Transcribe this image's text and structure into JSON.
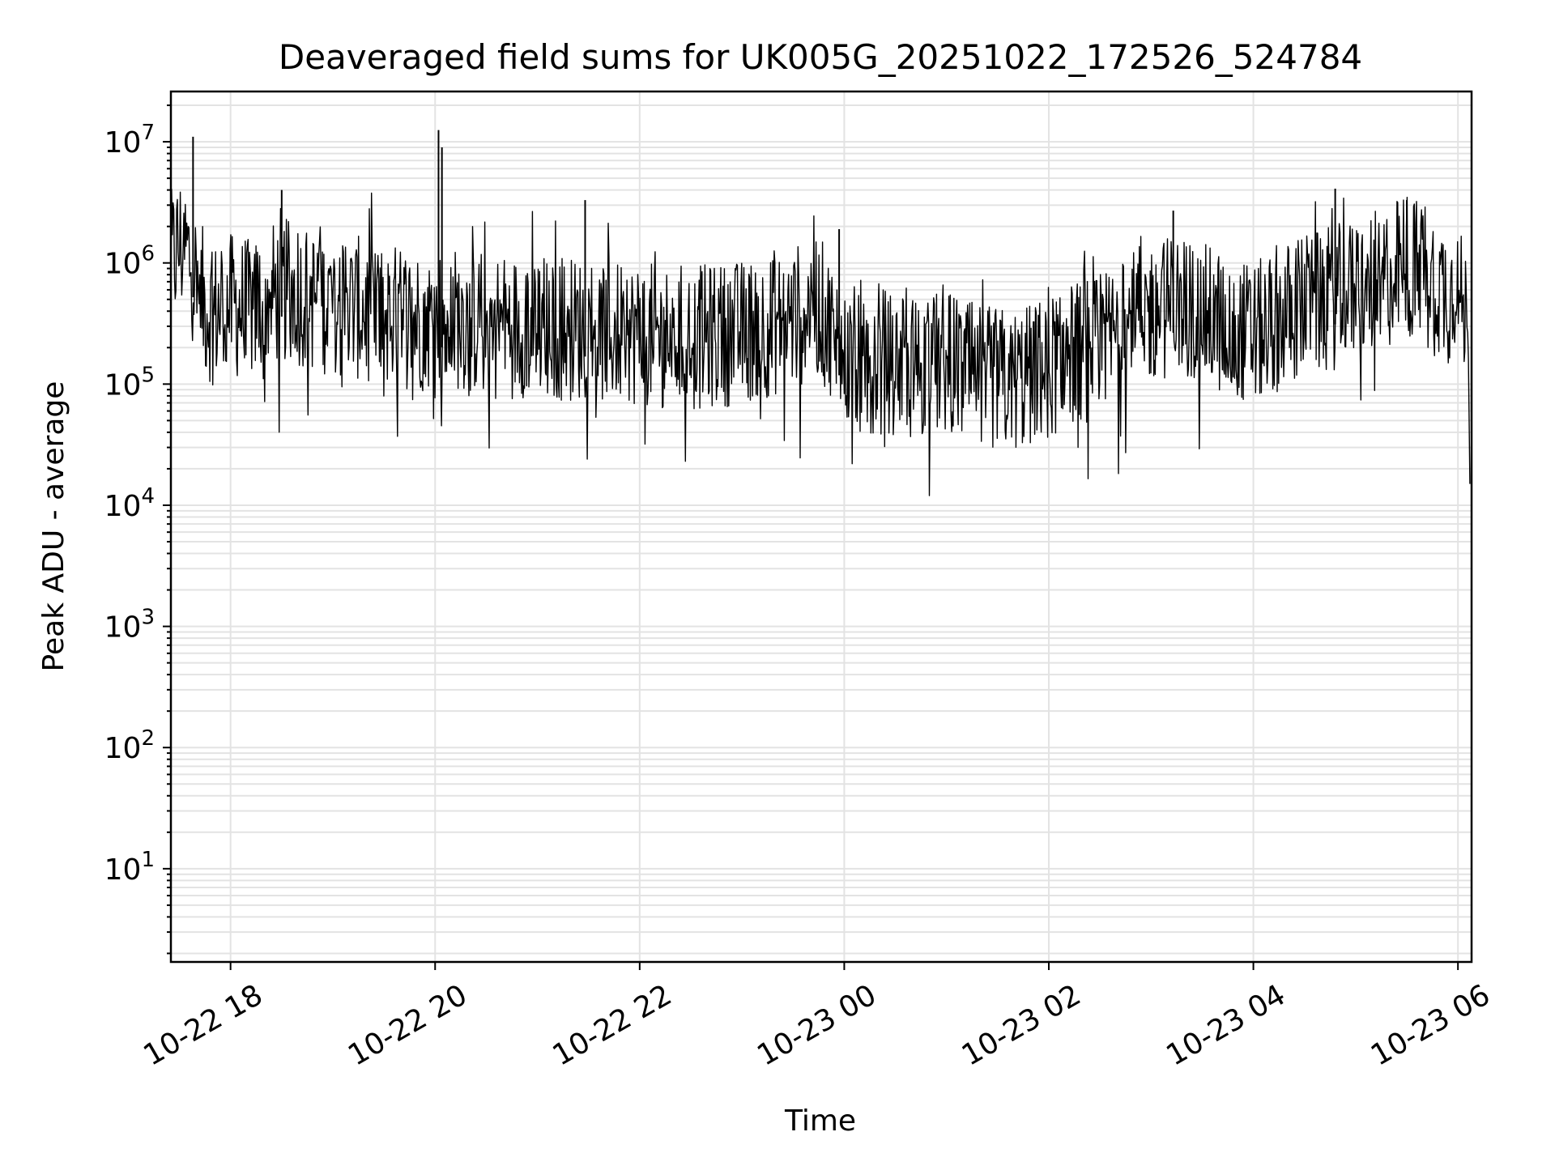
{
  "chart_data": {
    "type": "line",
    "title": "Deaveraged field sums for UK005G_20251022_172526_524784",
    "xlabel": "Time",
    "ylabel": "Peak ADU - average",
    "yscale": "log",
    "ylim": [
      1.7,
      26000000
    ],
    "xlim": [
      "2025-10-22 17:25",
      "2025-10-23 06:08"
    ],
    "grid": true,
    "xtick_labels": [
      "10-22 18",
      "10-22 20",
      "10-22 22",
      "10-23 00",
      "10-23 02",
      "10-23 04",
      "10-23 06"
    ],
    "xticks": [
      "2025-10-22 18:00",
      "2025-10-22 20:00",
      "2025-10-22 22:00",
      "2025-10-23 00:00",
      "2025-10-23 02:00",
      "2025-10-23 04:00",
      "2025-10-23 06:00"
    ],
    "ytick_values": [
      10,
      100,
      1000,
      10000,
      100000,
      1000000,
      10000000
    ],
    "ytick_labels": [
      {
        "base": "10",
        "exp": "1"
      },
      {
        "base": "10",
        "exp": "2"
      },
      {
        "base": "10",
        "exp": "3"
      },
      {
        "base": "10",
        "exp": "4"
      },
      {
        "base": "10",
        "exp": "5"
      },
      {
        "base": "10",
        "exp": "6"
      },
      {
        "base": "10",
        "exp": "7"
      }
    ],
    "series": [
      {
        "color": "#000000",
        "x": [
          "2025-10-22 17:25",
          "2025-10-22 17:30",
          "2025-10-22 17:35",
          "2025-10-22 17:40",
          "2025-10-22 17:45",
          "2025-10-22 17:50",
          "2025-10-22 17:55",
          "2025-10-22 18:00",
          "2025-10-22 18:10",
          "2025-10-22 18:20",
          "2025-10-22 18:30",
          "2025-10-22 18:40",
          "2025-10-22 18:50",
          "2025-10-22 19:00",
          "2025-10-22 19:15",
          "2025-10-22 19:30",
          "2025-10-22 19:45",
          "2025-10-22 20:00",
          "2025-10-22 20:15",
          "2025-10-22 20:30",
          "2025-10-22 20:45",
          "2025-10-22 21:00",
          "2025-10-22 21:15",
          "2025-10-22 21:30",
          "2025-10-22 21:45",
          "2025-10-22 22:00",
          "2025-10-22 22:15",
          "2025-10-22 22:30",
          "2025-10-22 22:45",
          "2025-10-22 23:00",
          "2025-10-22 23:15",
          "2025-10-22 23:30",
          "2025-10-22 23:45",
          "2025-10-23 00:00",
          "2025-10-23 00:10",
          "2025-10-23 00:20",
          "2025-10-23 00:40",
          "2025-10-23 01:00",
          "2025-10-23 01:15",
          "2025-10-23 01:30",
          "2025-10-23 01:45",
          "2025-10-23 02:00",
          "2025-10-23 02:15",
          "2025-10-23 02:30",
          "2025-10-23 02:45",
          "2025-10-23 03:00",
          "2025-10-23 03:15",
          "2025-10-23 03:30",
          "2025-10-23 03:45",
          "2025-10-23 04:00",
          "2025-10-23 04:15",
          "2025-10-23 04:30",
          "2025-10-23 04:45",
          "2025-10-23 05:00",
          "2025-10-23 05:15",
          "2025-10-23 05:30",
          "2025-10-23 05:45",
          "2025-10-23 06:00",
          "2025-10-23 06:04",
          "2025-10-23 06:06",
          "2025-10-23 06:07"
        ],
        "y": [
          1000000,
          1400000,
          1200000,
          700000,
          450000,
          380000,
          420000,
          450000,
          400000,
          500000,
          600000,
          550000,
          500000,
          450000,
          420000,
          380000,
          350000,
          330000,
          350000,
          320000,
          300000,
          310000,
          290000,
          280000,
          270000,
          260000,
          250000,
          240000,
          250000,
          270000,
          300000,
          350000,
          450000,
          160000,
          150000,
          160000,
          140000,
          150000,
          120000,
          110000,
          110000,
          140000,
          180000,
          200000,
          300000,
          400000,
          450000,
          380000,
          300000,
          250000,
          350000,
          450000,
          500000,
          600000,
          700000,
          1000000,
          700000,
          500000,
          400000,
          250000,
          15000
        ],
        "spikes": [
          {
            "x": "2025-10-22 17:38",
            "y": 11000000
          },
          {
            "x": "2025-10-22 18:30",
            "y": 4000000
          },
          {
            "x": "2025-10-22 20:02",
            "y": 12500000
          },
          {
            "x": "2025-10-22 20:04",
            "y": 9000000
          },
          {
            "x": "2025-10-22 21:28",
            "y": 3300000
          },
          {
            "x": "2025-10-22 23:57",
            "y": 1900000
          },
          {
            "x": "2025-10-23 03:13",
            "y": 2700000
          },
          {
            "x": "2025-10-23 04:48",
            "y": 4100000
          },
          {
            "x": "2025-10-23 05:30",
            "y": 3300000
          }
        ]
      }
    ]
  }
}
